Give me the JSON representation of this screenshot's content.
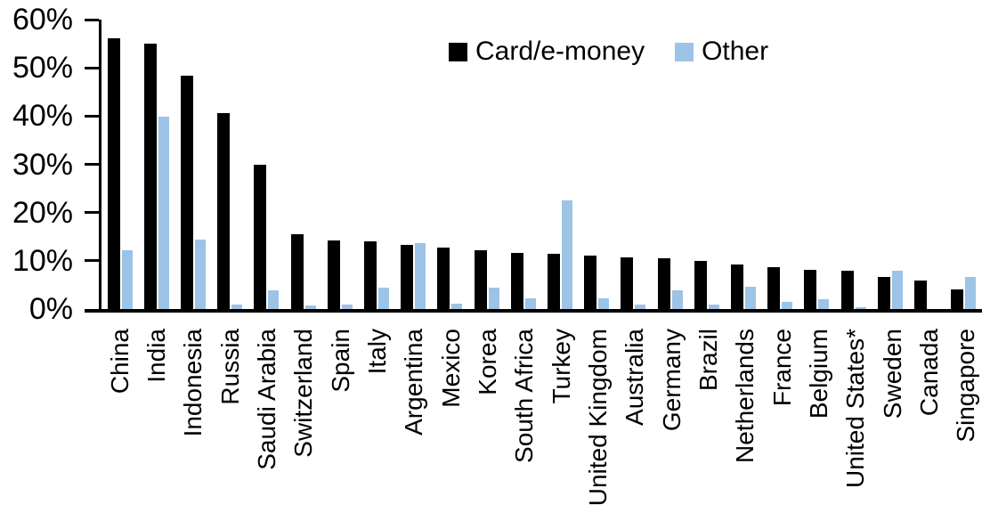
{
  "chart_data": {
    "type": "bar",
    "title": "",
    "xlabel": "",
    "ylabel": "",
    "ylim": [
      0,
      60
    ],
    "ytick_step": 10,
    "ytick_labels": [
      "0%",
      "10%",
      "20%",
      "30%",
      "40%",
      "50%",
      "60%"
    ],
    "grid": false,
    "legend_position": "top-center",
    "categories": [
      "China",
      "India",
      "Indonesia",
      "Russia",
      "Saudi Arabia",
      "Switzerland",
      "Spain",
      "Italy",
      "Argentina",
      "Mexico",
      "Korea",
      "South Africa",
      "Turkey",
      "United Kingdom",
      "Australia",
      "Germany",
      "Brazil",
      "Netherlands",
      "France",
      "Belgium",
      "United States*",
      "Sweden",
      "Canada",
      "Singapore"
    ],
    "series": [
      {
        "name": "Card/e-money",
        "color": "#000000",
        "values": [
          56.2,
          55.0,
          48.4,
          40.6,
          29.9,
          15.5,
          14.2,
          14.0,
          13.3,
          12.8,
          12.2,
          11.7,
          11.5,
          11.0,
          10.7,
          10.5,
          10.0,
          9.3,
          8.7,
          8.2,
          7.9,
          6.6,
          6.0,
          4.0
        ],
        "bar_kind": "card"
      },
      {
        "name": "Other",
        "color": "#9DC3E6",
        "values": [
          12.2,
          39.8,
          14.4,
          0.9,
          3.8,
          0.8,
          1.0,
          4.5,
          13.7,
          1.2,
          4.5,
          2.2,
          22.5,
          2.3,
          1.0,
          3.9,
          1.0,
          4.7,
          1.5,
          2.0,
          0.3,
          8.0,
          0.0,
          6.7
        ],
        "bar_kind": "other"
      }
    ]
  }
}
